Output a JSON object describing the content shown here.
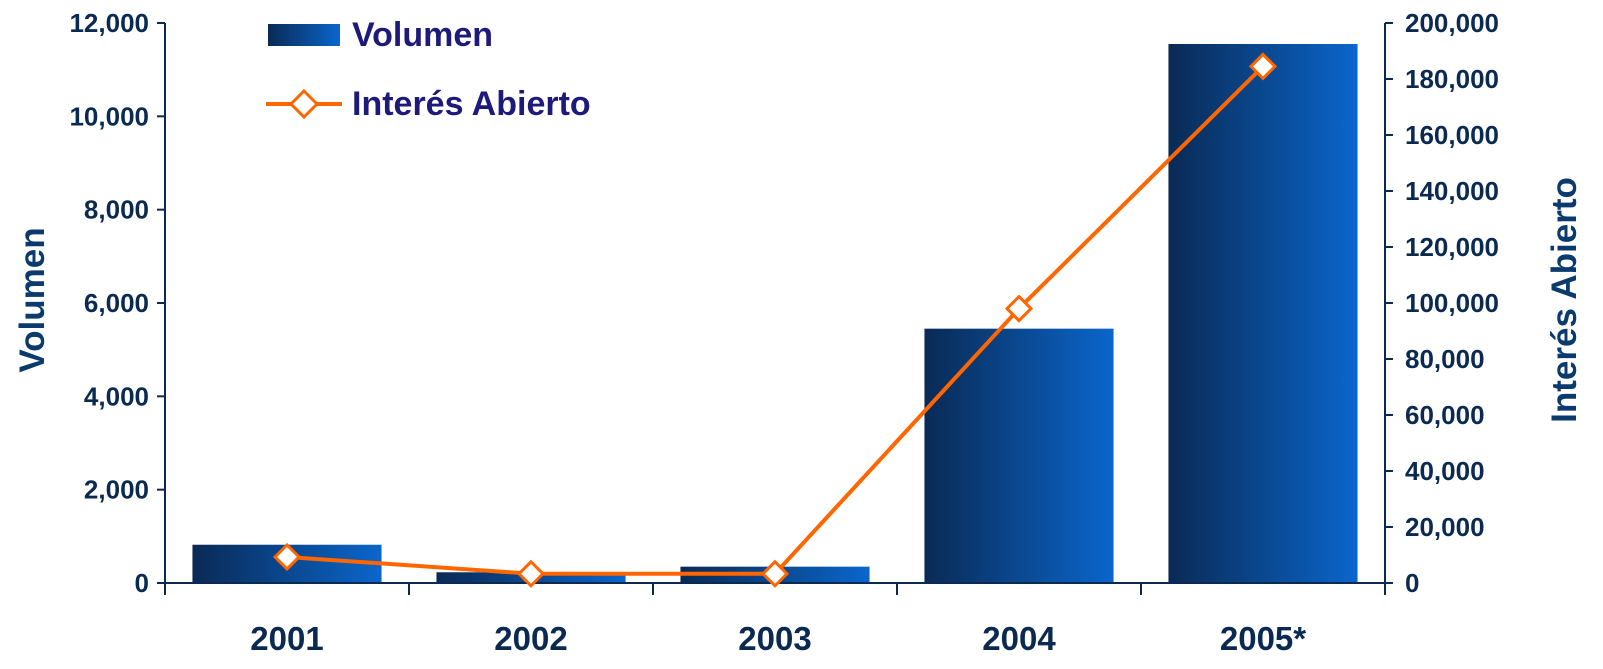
{
  "chart_data": {
    "type": "bar",
    "categories": [
      "2001",
      "2002",
      "2003",
      "2004",
      "2005*"
    ],
    "series": [
      {
        "name": "Volumen",
        "kind": "bar",
        "axis": "left",
        "values": [
          820,
          230,
          350,
          5450,
          11550
        ],
        "color_dark": "#0a2a55",
        "color_light": "#0a66cc"
      },
      {
        "name": "Interés Abierto",
        "kind": "line",
        "axis": "right",
        "marker": "diamond",
        "values": [
          9300,
          3300,
          3300,
          98000,
          184500
        ],
        "color": "#ff6600"
      }
    ],
    "ylabel": "Volumen",
    "y2label": "Interés Abierto",
    "ylim": [
      0,
      12000
    ],
    "y2lim": [
      0,
      200000
    ],
    "yticks": [
      "0",
      "2,000",
      "4,000",
      "6,000",
      "8,000",
      "10,000",
      "12,000"
    ],
    "y2ticks": [
      "0",
      "20,000",
      "40,000",
      "60,000",
      "80,000",
      "100,000",
      "120,000",
      "140,000",
      "160,000",
      "180,000",
      "200,000"
    ],
    "legend": {
      "position": "top-left",
      "items": [
        "Volumen",
        "Interés Abierto"
      ]
    },
    "grid": false
  }
}
